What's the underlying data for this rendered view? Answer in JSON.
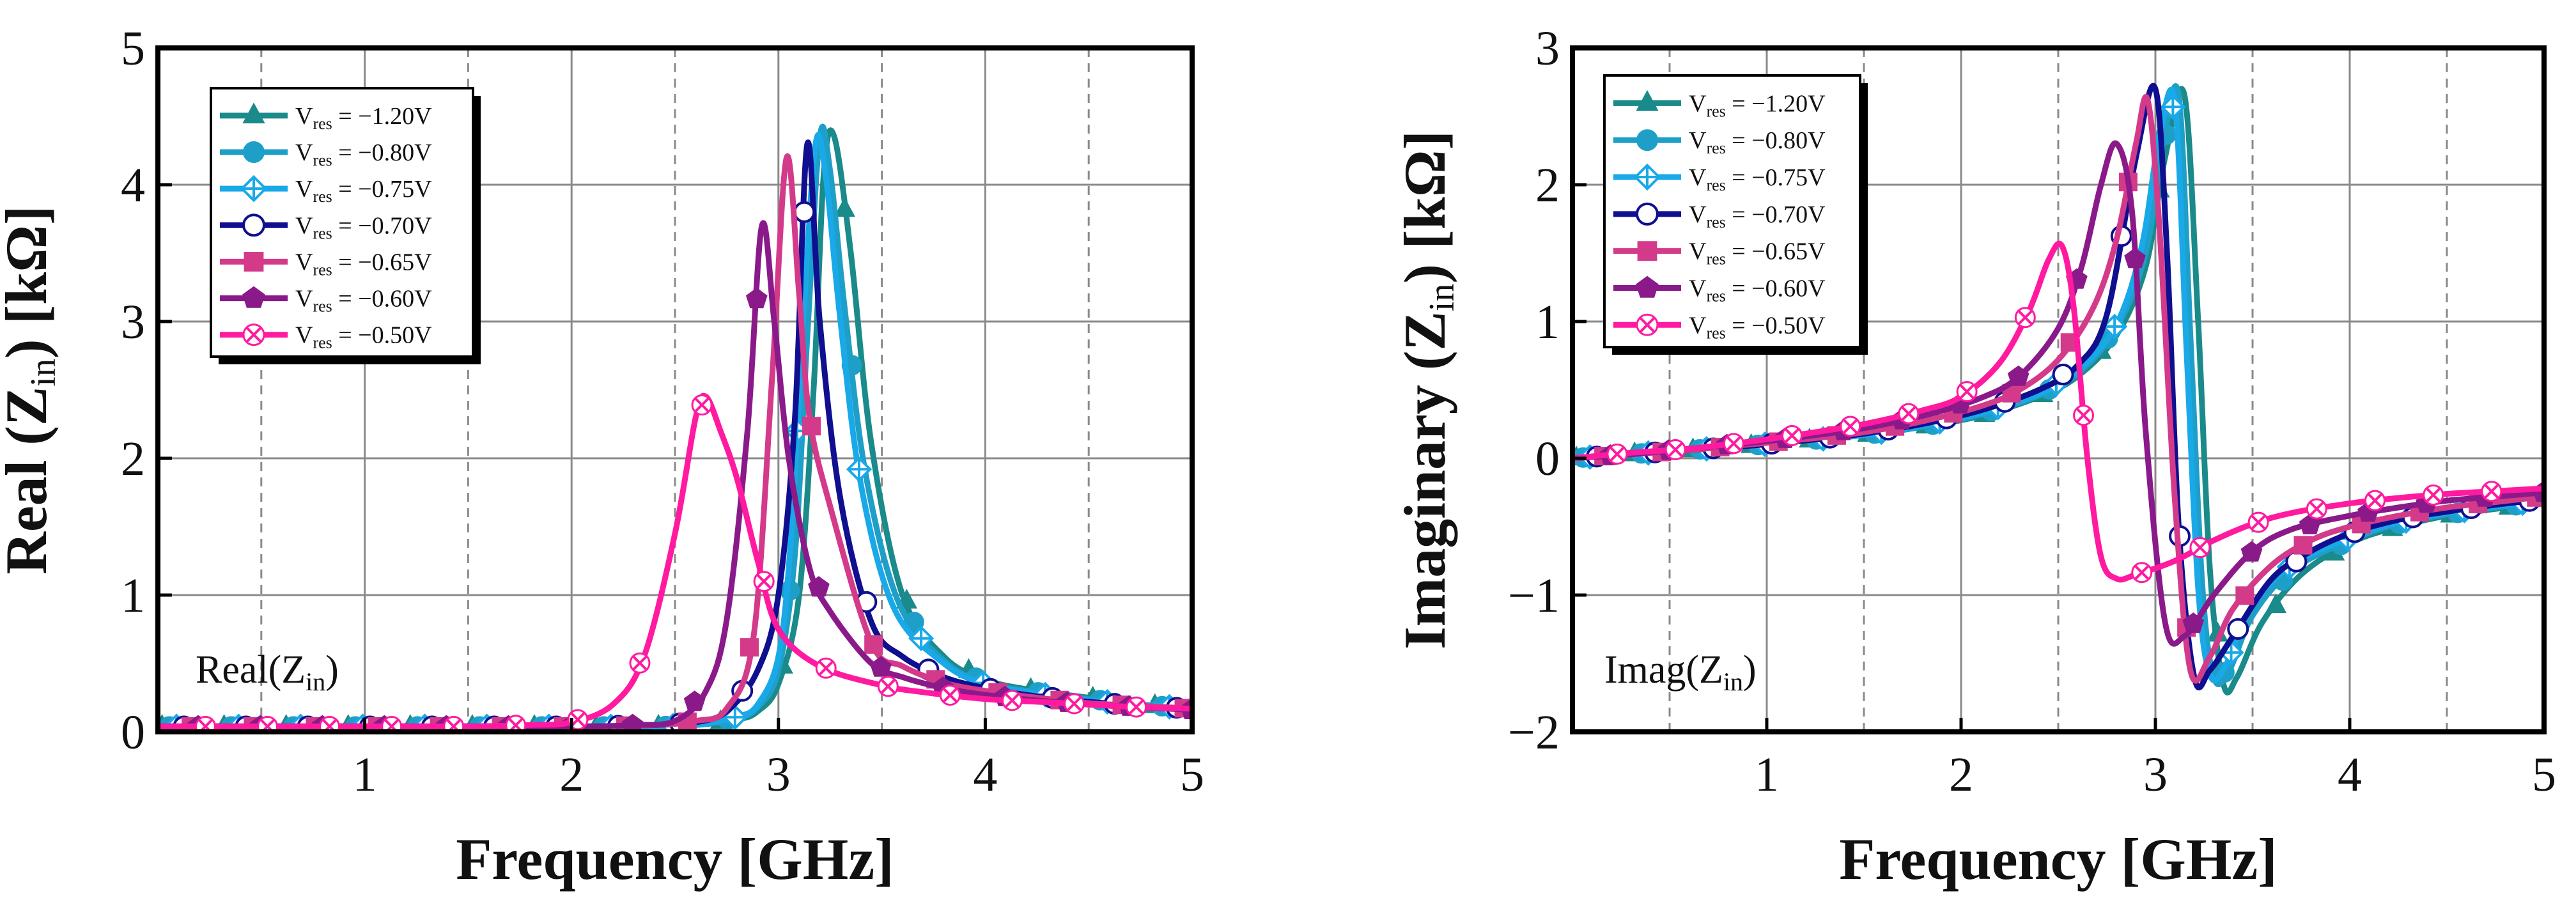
{
  "chart_data": [
    {
      "id": "real",
      "type": "line",
      "annotation": "Real(Z<sub>in</sub>)",
      "xlabel": "Frequency [GHz]",
      "ylabel_parts": [
        "Real (Z",
        "in",
        ") [kΩ]"
      ],
      "xlim": [
        0,
        5
      ],
      "ylim": [
        0,
        5
      ],
      "xticks": [
        1,
        2,
        3,
        4,
        5
      ],
      "yticks": [
        0,
        1,
        2,
        3,
        4,
        5
      ],
      "minor_x_dashed": [
        0.5,
        1.5,
        2.5,
        3.5,
        4.5
      ],
      "grid": true,
      "legend_position": "top-left",
      "series": [
        {
          "name": "Vres = -1.20V",
          "label_sub": "res",
          "label_value": " = −1.20V",
          "color": "#1a8a8a",
          "marker": "triangle",
          "x": [
            0,
            0.3,
            0.6,
            0.9,
            1.2,
            1.5,
            1.8,
            2.1,
            2.4,
            2.6,
            2.8,
            2.9,
            3.0,
            3.1,
            3.17,
            3.22,
            3.27,
            3.35,
            3.45,
            3.6,
            3.8,
            4.0,
            4.25,
            4.5,
            4.75,
            5.0
          ],
          "y": [
            0.04,
            0.04,
            0.04,
            0.04,
            0.04,
            0.04,
            0.04,
            0.04,
            0.04,
            0.05,
            0.09,
            0.15,
            0.35,
            1.0,
            2.5,
            4.1,
            4.35,
            3.5,
            2.1,
            1.0,
            0.55,
            0.38,
            0.3,
            0.25,
            0.2,
            0.17
          ]
        },
        {
          "name": "Vres = -0.80V",
          "label_sub": "res",
          "label_value": " = −0.80V",
          "color": "#1e9fc8",
          "marker": "circle-filled",
          "x": [
            0,
            0.3,
            0.6,
            0.9,
            1.2,
            1.5,
            1.8,
            2.1,
            2.4,
            2.6,
            2.8,
            2.9,
            3.0,
            3.08,
            3.14,
            3.2,
            3.25,
            3.32,
            3.42,
            3.58,
            3.8,
            4.0,
            4.25,
            4.5,
            4.75,
            5.0
          ],
          "y": [
            0.04,
            0.04,
            0.04,
            0.04,
            0.04,
            0.04,
            0.04,
            0.04,
            0.04,
            0.05,
            0.1,
            0.18,
            0.45,
            1.3,
            2.9,
            4.35,
            4.1,
            3.1,
            1.9,
            0.95,
            0.52,
            0.36,
            0.29,
            0.24,
            0.2,
            0.17
          ]
        },
        {
          "name": "Vres = -0.75V",
          "label_sub": "res",
          "label_value": " = −0.75V",
          "color": "#1aa9e8",
          "marker": "diamond-cross",
          "x": [
            0,
            0.3,
            0.6,
            0.9,
            1.2,
            1.5,
            1.8,
            2.1,
            2.4,
            2.6,
            2.8,
            2.9,
            3.0,
            3.06,
            3.12,
            3.18,
            3.23,
            3.3,
            3.4,
            3.56,
            3.8,
            4.0,
            4.25,
            4.5,
            4.75,
            5.0
          ],
          "y": [
            0.04,
            0.04,
            0.04,
            0.04,
            0.04,
            0.04,
            0.04,
            0.04,
            0.04,
            0.05,
            0.11,
            0.2,
            0.55,
            1.4,
            3.0,
            4.3,
            4.05,
            3.0,
            1.8,
            0.9,
            0.5,
            0.35,
            0.28,
            0.23,
            0.2,
            0.17
          ]
        },
        {
          "name": "Vres = -0.70V",
          "label_sub": "res",
          "label_value": " = −0.70V",
          "color": "#0f0f8f",
          "marker": "circle-open",
          "x": [
            0,
            0.3,
            0.6,
            0.9,
            1.2,
            1.5,
            1.8,
            2.1,
            2.4,
            2.6,
            2.75,
            2.9,
            3.0,
            3.08,
            3.14,
            3.2,
            3.3,
            3.45,
            3.6,
            3.8,
            4.0,
            4.25,
            4.5,
            4.75,
            5.0
          ],
          "y": [
            0.04,
            0.04,
            0.04,
            0.04,
            0.04,
            0.04,
            0.04,
            0.04,
            0.05,
            0.07,
            0.15,
            0.45,
            1.0,
            2.3,
            4.3,
            3.0,
            1.7,
            0.8,
            0.55,
            0.4,
            0.32,
            0.26,
            0.22,
            0.19,
            0.17
          ]
        },
        {
          "name": "Vres = -0.65V",
          "label_sub": "res",
          "label_value": " = −0.65V",
          "color": "#d43a8a",
          "marker": "square",
          "x": [
            0,
            0.3,
            0.6,
            0.9,
            1.2,
            1.5,
            1.8,
            2.1,
            2.4,
            2.6,
            2.75,
            2.88,
            2.97,
            3.04,
            3.1,
            3.15,
            3.25,
            3.45,
            3.6,
            3.8,
            4.0,
            4.25,
            4.5,
            4.75,
            5.0
          ],
          "y": [
            0.04,
            0.04,
            0.04,
            0.04,
            0.04,
            0.04,
            0.04,
            0.04,
            0.05,
            0.08,
            0.17,
            0.7,
            2.6,
            4.2,
            3.2,
            2.3,
            1.65,
            0.65,
            0.48,
            0.36,
            0.3,
            0.25,
            0.21,
            0.19,
            0.17
          ]
        },
        {
          "name": "Vres = -0.60V",
          "label_sub": "res",
          "label_value": " = −0.60V",
          "color": "#8a1a8a",
          "marker": "pentagon",
          "x": [
            0,
            0.3,
            0.6,
            0.9,
            1.2,
            1.5,
            1.8,
            2.1,
            2.3,
            2.5,
            2.65,
            2.75,
            2.85,
            2.92,
            2.98,
            3.05,
            3.15,
            3.25,
            3.45,
            3.6,
            3.8,
            4.0,
            4.25,
            4.5,
            4.75,
            5.0
          ],
          "y": [
            0.04,
            0.04,
            0.04,
            0.04,
            0.04,
            0.04,
            0.04,
            0.04,
            0.05,
            0.08,
            0.3,
            0.82,
            2.2,
            3.7,
            3.0,
            2.0,
            1.2,
            0.88,
            0.5,
            0.4,
            0.32,
            0.27,
            0.23,
            0.2,
            0.18,
            0.16
          ]
        },
        {
          "name": "Vres = -0.50V",
          "label_sub": "res",
          "label_value": " = −0.50V",
          "color": "#ff1aa0",
          "marker": "x-circle",
          "x": [
            0,
            0.3,
            0.6,
            0.9,
            1.2,
            1.5,
            1.8,
            2.0,
            2.2,
            2.35,
            2.5,
            2.6,
            2.65,
            2.72,
            2.8,
            2.9,
            3.0,
            3.2,
            3.5,
            3.7,
            4.0,
            4.25,
            4.5,
            4.75,
            5.0
          ],
          "y": [
            0.04,
            0.04,
            0.04,
            0.04,
            0.04,
            0.04,
            0.05,
            0.07,
            0.2,
            0.55,
            1.45,
            2.3,
            2.45,
            2.2,
            1.85,
            1.25,
            0.75,
            0.48,
            0.34,
            0.29,
            0.24,
            0.22,
            0.2,
            0.18,
            0.17
          ]
        }
      ]
    },
    {
      "id": "imag",
      "type": "line",
      "annotation": "Imag(Z<sub>in</sub>)",
      "xlabel": "Frequency [GHz]",
      "ylabel_parts": [
        "Imaginary (Z",
        "in",
        ") [kΩ]"
      ],
      "xlim": [
        0,
        5
      ],
      "ylim": [
        -2,
        3
      ],
      "xticks": [
        1,
        2,
        3,
        4,
        5
      ],
      "yticks": [
        -2,
        -1,
        0,
        1,
        2,
        3
      ],
      "ytick_labels": [
        "−2",
        "−1",
        "0",
        "1",
        "2",
        "3"
      ],
      "minor_x_dashed": [
        0.5,
        1.5,
        2.5,
        3.5,
        4.5
      ],
      "grid": true,
      "legend_position": "top-left",
      "series": [
        {
          "name": "Vres = -1.20V",
          "label_sub": "res",
          "label_value": " = −1.20V",
          "color": "#1a8a8a",
          "marker": "triangle",
          "x": [
            0,
            0.3,
            0.6,
            0.9,
            1.2,
            1.5,
            1.8,
            2.1,
            2.4,
            2.6,
            2.8,
            2.95,
            3.05,
            3.15,
            3.22,
            3.28,
            3.35,
            3.42,
            3.55,
            3.75,
            4.0,
            4.25,
            4.5,
            4.75,
            5.0
          ],
          "y": [
            0,
            0.03,
            0.06,
            0.09,
            0.13,
            0.17,
            0.23,
            0.31,
            0.45,
            0.6,
            0.9,
            1.4,
            2.2,
            2.65,
            1.0,
            -0.8,
            -1.65,
            -1.6,
            -1.2,
            -0.85,
            -0.62,
            -0.5,
            -0.42,
            -0.37,
            -0.33
          ]
        },
        {
          "name": "Vres = -0.80V",
          "label_sub": "res",
          "label_value": " = −0.80V",
          "color": "#1e9fc8",
          "marker": "circle-filled",
          "x": [
            0,
            0.3,
            0.6,
            0.9,
            1.2,
            1.5,
            1.8,
            2.1,
            2.4,
            2.6,
            2.8,
            2.95,
            3.04,
            3.12,
            3.18,
            3.24,
            3.3,
            3.38,
            3.5,
            3.7,
            4.0,
            4.25,
            4.5,
            4.75,
            5.0
          ],
          "y": [
            0,
            0.03,
            0.06,
            0.09,
            0.13,
            0.17,
            0.23,
            0.32,
            0.46,
            0.62,
            0.95,
            1.5,
            2.3,
            2.65,
            0.9,
            -0.9,
            -1.6,
            -1.55,
            -1.15,
            -0.82,
            -0.6,
            -0.48,
            -0.41,
            -0.36,
            -0.32
          ]
        },
        {
          "name": "Vres = -0.75V",
          "label_sub": "res",
          "label_value": " = −0.75V",
          "color": "#1aa9e8",
          "marker": "diamond-cross",
          "x": [
            0,
            0.3,
            0.6,
            0.9,
            1.2,
            1.5,
            1.8,
            2.1,
            2.4,
            2.6,
            2.8,
            2.93,
            3.02,
            3.1,
            3.16,
            3.22,
            3.28,
            3.36,
            3.48,
            3.68,
            4.0,
            4.25,
            4.5,
            4.75,
            5.0
          ],
          "y": [
            0,
            0.03,
            0.06,
            0.09,
            0.13,
            0.17,
            0.24,
            0.33,
            0.47,
            0.64,
            0.98,
            1.55,
            2.35,
            2.6,
            0.8,
            -0.95,
            -1.58,
            -1.52,
            -1.12,
            -0.8,
            -0.58,
            -0.47,
            -0.4,
            -0.35,
            -0.31
          ]
        },
        {
          "name": "Vres = -0.70V",
          "label_sub": "res",
          "label_value": " = −0.70V",
          "color": "#0f0f8f",
          "marker": "circle-open",
          "x": [
            0,
            0.3,
            0.6,
            0.9,
            1.2,
            1.5,
            1.8,
            2.1,
            2.4,
            2.6,
            2.75,
            2.9,
            3.0,
            3.06,
            3.12,
            3.2,
            3.28,
            3.4,
            3.6,
            3.8,
            4.0,
            4.25,
            4.5,
            4.75,
            5.0
          ],
          "y": [
            0,
            0.03,
            0.06,
            0.09,
            0.13,
            0.18,
            0.25,
            0.35,
            0.5,
            0.68,
            1.05,
            2.2,
            2.7,
            1.5,
            -0.5,
            -1.6,
            -1.55,
            -1.3,
            -0.88,
            -0.68,
            -0.55,
            -0.45,
            -0.39,
            -0.34,
            -0.3
          ]
        },
        {
          "name": "Vres = -0.65V",
          "label_sub": "res",
          "label_value": " = −0.65V",
          "color": "#d43a8a",
          "marker": "square",
          "x": [
            0,
            0.3,
            0.6,
            0.9,
            1.2,
            1.5,
            1.8,
            2.1,
            2.3,
            2.5,
            2.68,
            2.8,
            2.9,
            2.96,
            3.02,
            3.1,
            3.18,
            3.28,
            3.4,
            3.6,
            3.8,
            4.0,
            4.25,
            4.5,
            4.75,
            5.0
          ],
          "y": [
            0,
            0.03,
            0.06,
            0.1,
            0.14,
            0.19,
            0.27,
            0.38,
            0.5,
            0.72,
            1.1,
            1.6,
            2.3,
            2.62,
            1.7,
            -0.3,
            -1.55,
            -1.45,
            -1.1,
            -0.78,
            -0.6,
            -0.5,
            -0.42,
            -0.36,
            -0.32,
            -0.28
          ]
        },
        {
          "name": "Vres = -0.60V",
          "label_sub": "res",
          "label_value": " = −0.60V",
          "color": "#8a1a8a",
          "marker": "pentagon",
          "x": [
            0,
            0.3,
            0.6,
            0.9,
            1.2,
            1.5,
            1.8,
            2.1,
            2.3,
            2.5,
            2.62,
            2.72,
            2.8,
            2.88,
            2.95,
            3.05,
            3.15,
            3.3,
            3.5,
            3.7,
            4.0,
            4.25,
            4.5,
            4.75,
            5.0
          ],
          "y": [
            0,
            0.03,
            0.07,
            0.11,
            0.16,
            0.22,
            0.31,
            0.44,
            0.6,
            0.95,
            1.4,
            2.0,
            2.3,
            1.8,
            0.2,
            -1.2,
            -1.3,
            -1.0,
            -0.68,
            -0.52,
            -0.42,
            -0.36,
            -0.31,
            -0.28,
            -0.25
          ]
        },
        {
          "name": "Vres = -0.50V",
          "label_sub": "res",
          "label_value": " = −0.50V",
          "color": "#ff1aa0",
          "marker": "x-circle",
          "x": [
            0,
            0.3,
            0.6,
            0.9,
            1.2,
            1.5,
            1.8,
            2.0,
            2.2,
            2.35,
            2.45,
            2.52,
            2.58,
            2.65,
            2.72,
            2.8,
            2.9,
            3.1,
            3.3,
            3.5,
            3.7,
            4.0,
            4.25,
            4.5,
            4.75,
            5.0
          ],
          "y": [
            0,
            0.04,
            0.07,
            0.12,
            0.18,
            0.25,
            0.35,
            0.45,
            0.7,
            1.08,
            1.45,
            1.55,
            1.1,
            0.0,
            -0.72,
            -0.88,
            -0.85,
            -0.75,
            -0.6,
            -0.48,
            -0.4,
            -0.33,
            -0.29,
            -0.26,
            -0.24,
            -0.22
          ]
        }
      ]
    }
  ]
}
